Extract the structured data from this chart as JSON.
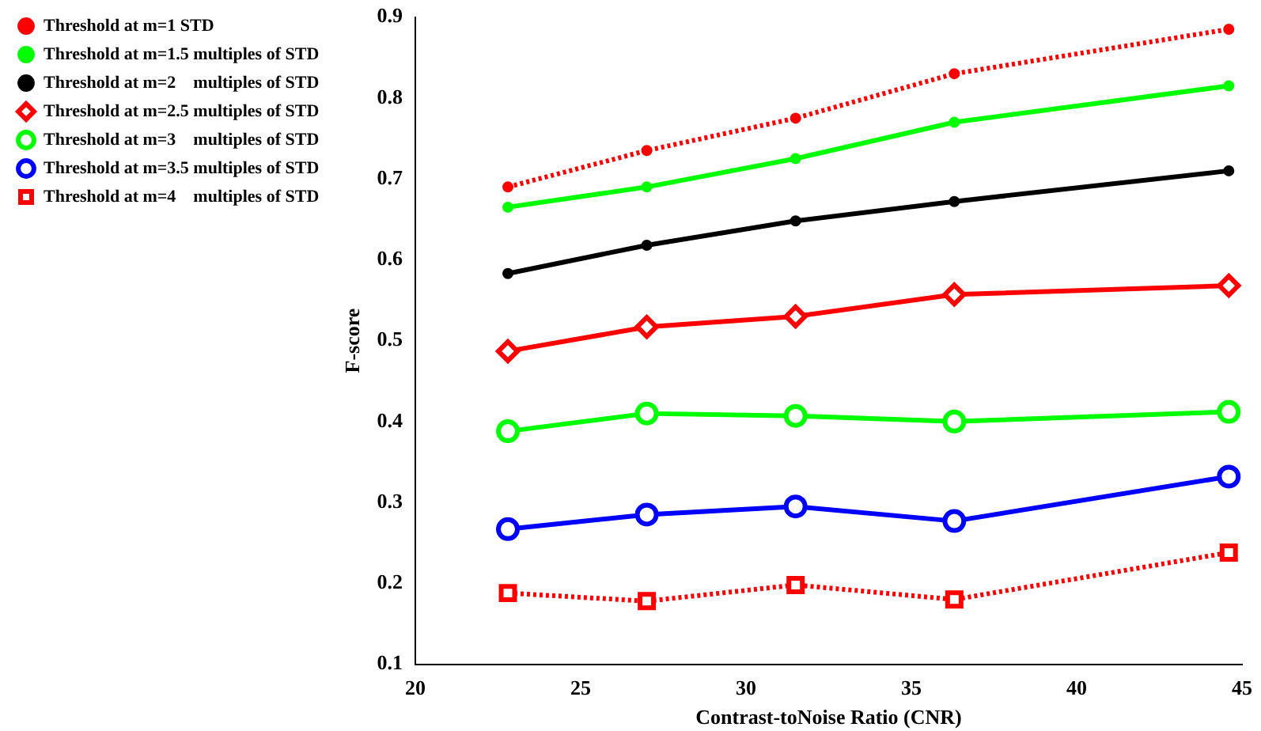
{
  "chart_data": {
    "type": "line",
    "xlabel": "Contrast-toNoise Ratio (CNR)",
    "ylabel": "F-score",
    "x": [
      22.8,
      27.0,
      31.5,
      36.3,
      44.6
    ],
    "xlim": [
      20,
      45
    ],
    "xticks": [
      20,
      25,
      30,
      35,
      40,
      45
    ],
    "ylim": [
      0.1,
      0.9
    ],
    "yticks": [
      0.1,
      0.2,
      0.3,
      0.4,
      0.5,
      0.6,
      0.7,
      0.8,
      0.9
    ],
    "grid": false,
    "legend": "left",
    "series": [
      {
        "name": "Threshold at m=1 STD",
        "color": "#ff0000",
        "marker": "circle",
        "line_style": "dotted",
        "values": [
          0.69,
          0.735,
          0.775,
          0.83,
          0.885
        ]
      },
      {
        "name": "Threshold at m=1.5 multiples of STD",
        "color": "#00ff00",
        "marker": "circle",
        "line_style": "solid",
        "values": [
          0.665,
          0.69,
          0.725,
          0.77,
          0.815
        ]
      },
      {
        "name": "Threshold at m=2    multiples of STD",
        "color": "#000000",
        "marker": "circle",
        "line_style": "solid",
        "values": [
          0.583,
          0.618,
          0.648,
          0.672,
          0.71
        ]
      },
      {
        "name": "Threshold at m=2.5 multiples of STD",
        "color": "#ff0000",
        "marker": "diamond",
        "line_style": "solid",
        "values": [
          0.487,
          0.517,
          0.53,
          0.557,
          0.568
        ]
      },
      {
        "name": "Threshold at m=3    multiples of STD",
        "color": "#00ff00",
        "marker": "circle",
        "line_style": "solid",
        "values": [
          0.388,
          0.41,
          0.407,
          0.4,
          0.412
        ]
      },
      {
        "name": "Threshold at m=3.5 multiples of STD",
        "color": "#0000ff",
        "marker": "circle",
        "line_style": "solid",
        "values": [
          0.267,
          0.285,
          0.295,
          0.277,
          0.332
        ]
      },
      {
        "name": "Threshold at m=4    multiples of STD",
        "color": "#ff0000",
        "marker": "square",
        "line_style": "dotted",
        "values": [
          0.188,
          0.178,
          0.198,
          0.18,
          0.238
        ]
      }
    ]
  }
}
